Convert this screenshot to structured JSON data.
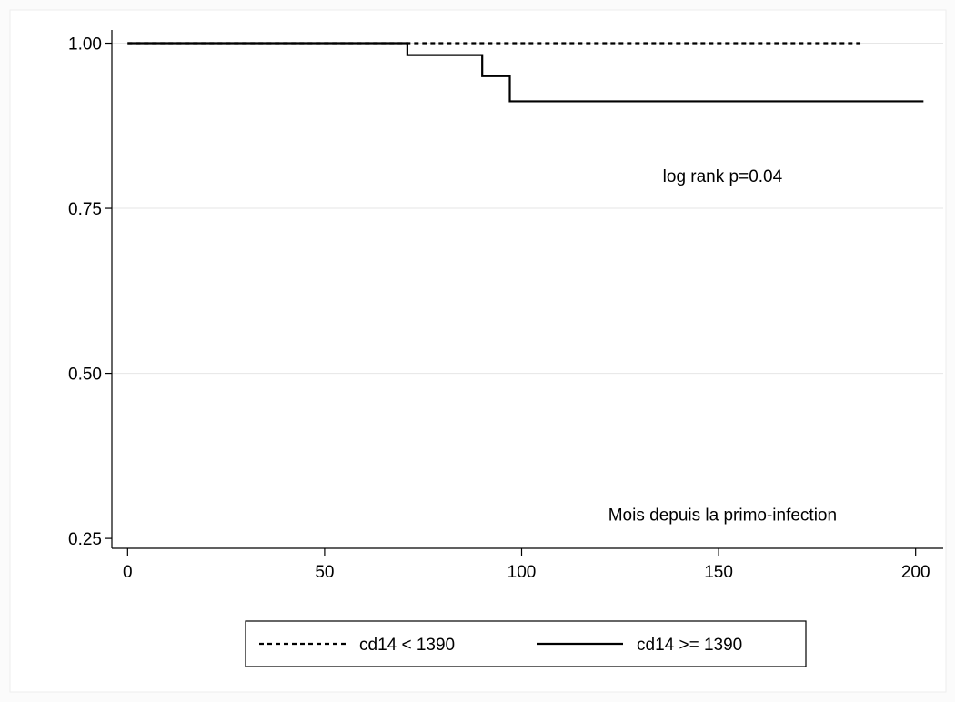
{
  "chart_data": {
    "type": "line",
    "step": true,
    "x_axis": {
      "ticks": [
        0,
        50,
        100,
        150,
        200
      ],
      "tick_labels": [
        "0",
        "50",
        "100",
        "150",
        "200"
      ],
      "range": [
        -4,
        207
      ]
    },
    "y_axis": {
      "ticks": [
        0.25,
        0.5,
        0.75,
        1.0
      ],
      "tick_labels": [
        "0.25",
        "0.50",
        "0.75",
        "1.00"
      ],
      "range": [
        0.235,
        1.02
      ]
    },
    "grid": true,
    "annotations": [
      {
        "text": "log rank p=0.04",
        "x": 151,
        "y": 0.79
      },
      {
        "text": "Mois depuis la primo-infection",
        "x": 151,
        "y": 0.277
      }
    ],
    "legend": {
      "position": "bottom",
      "entries": [
        {
          "label": "cd14 < 1390",
          "style": "dashed"
        },
        {
          "label": "cd14 >= 1390",
          "style": "solid"
        }
      ]
    },
    "series": [
      {
        "name": "cd14 < 1390",
        "style": "dashed",
        "color": "#000000",
        "x": [
          0,
          186
        ],
        "y": [
          1.0,
          1.0
        ]
      },
      {
        "name": "cd14 >= 1390",
        "style": "solid",
        "color": "#000000",
        "x": [
          0,
          71,
          90,
          97,
          202
        ],
        "y": [
          1.0,
          0.982,
          0.95,
          0.912,
          0.912
        ]
      }
    ]
  }
}
